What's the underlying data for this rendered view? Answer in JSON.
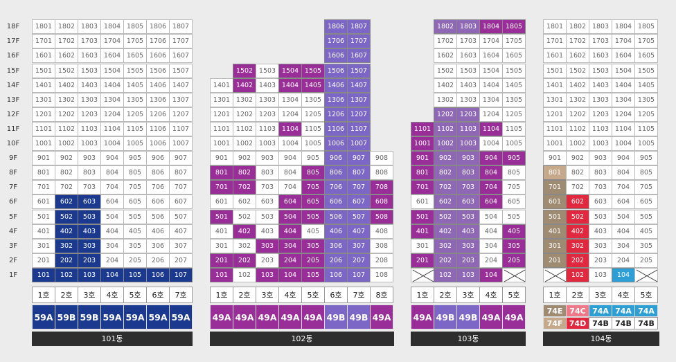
{
  "floor_labels": [
    "18F",
    "17F",
    "16F",
    "15F",
    "14F",
    "13F",
    "12F",
    "11F",
    "10F",
    "9F",
    "8F",
    "7F",
    "6F",
    "5F",
    "4F",
    "3F",
    "2F",
    "1F"
  ],
  "colors": {
    "navy": "#1b3a8f",
    "purple": "#9a2e98",
    "violet": "#7c66c6",
    "mauve": "#8e68b4",
    "brown": "#9f8b71",
    "tan": "#c6a98a",
    "red": "#e0293f",
    "pink": "#ee7a89",
    "blue": "#2e9fd4"
  },
  "buildings": [
    {
      "id": "101",
      "label": "101동",
      "floors": 18,
      "units": [
        {
          "label": "1호",
          "type": "59A",
          "color": "navy"
        },
        {
          "label": "2호",
          "type": "59B",
          "color": "navy"
        },
        {
          "label": "3호",
          "type": "59B",
          "color": "navy"
        },
        {
          "label": "4호",
          "type": "59A",
          "color": "navy"
        },
        {
          "label": "5호",
          "type": "59A",
          "color": "navy"
        },
        {
          "label": "6호",
          "type": "59A",
          "color": "navy"
        },
        {
          "label": "7호",
          "type": "59A",
          "color": "navy"
        }
      ],
      "cols": [
        {
          "top": 18,
          "hl": [
            [
              "navy",
              1,
              1
            ]
          ]
        },
        {
          "top": 18,
          "hl": [
            [
              "navy",
              1,
              6
            ]
          ]
        },
        {
          "top": 18,
          "hl": [
            [
              "navy",
              1,
              6
            ]
          ]
        },
        {
          "top": 18,
          "hl": [
            [
              "navy",
              1,
              1
            ]
          ]
        },
        {
          "top": 18,
          "hl": [
            [
              "navy",
              1,
              1
            ]
          ]
        },
        {
          "top": 18,
          "hl": [
            [
              "navy",
              1,
              1
            ]
          ]
        },
        {
          "top": 18,
          "hl": [
            [
              "navy",
              1,
              1
            ]
          ]
        }
      ]
    },
    {
      "id": "102",
      "label": "102동",
      "floors": 18,
      "units": [
        {
          "label": "1호",
          "type": "49A",
          "color": "purple"
        },
        {
          "label": "2호",
          "type": "49A",
          "color": "purple"
        },
        {
          "label": "3호",
          "type": "49A",
          "color": "purple"
        },
        {
          "label": "4호",
          "type": "49A",
          "color": "purple"
        },
        {
          "label": "5호",
          "type": "49A",
          "color": "purple"
        },
        {
          "label": "6호",
          "type": "49B",
          "color": "violet"
        },
        {
          "label": "7호",
          "type": "49B",
          "color": "violet"
        },
        {
          "label": "8호",
          "type": "49A",
          "color": "purple"
        }
      ],
      "cols": [
        {
          "top": 14,
          "hl": [
            [
              "purple",
              1,
              2
            ],
            [
              "purple",
              5,
              5
            ],
            [
              "purple",
              7,
              8
            ]
          ]
        },
        {
          "top": 15,
          "hl": [
            [
              "purple",
              2,
              2
            ],
            [
              "purple",
              4,
              4
            ],
            [
              "purple",
              7,
              8
            ],
            [
              "purple",
              14,
              15
            ]
          ]
        },
        {
          "top": 15,
          "hl": [
            [
              "purple",
              1,
              1
            ],
            [
              "purple",
              3,
              3
            ]
          ]
        },
        {
          "top": 15,
          "hl": [
            [
              "purple",
              1,
              6
            ],
            [
              "purple",
              11,
              11
            ],
            [
              "purple",
              14,
              15
            ]
          ]
        },
        {
          "top": 15,
          "hl": [
            [
              "purple",
              1,
              3
            ],
            [
              "purple",
              5,
              8
            ],
            [
              "purple",
              14,
              15
            ]
          ]
        },
        {
          "top": 18,
          "hl": [
            [
              "violet",
              1,
              18
            ]
          ]
        },
        {
          "top": 18,
          "hl": [
            [
              "violet",
              1,
              18
            ]
          ]
        },
        {
          "top": 9,
          "hl": [
            [
              "purple",
              5,
              7
            ]
          ]
        }
      ]
    },
    {
      "id": "103",
      "label": "103동",
      "floors": 18,
      "units": [
        {
          "label": "1호",
          "type": "49A",
          "color": "purple"
        },
        {
          "label": "2호",
          "type": "49B",
          "color": "violet"
        },
        {
          "label": "3호",
          "type": "49B",
          "color": "violet"
        },
        {
          "label": "4호",
          "type": "49A",
          "color": "purple"
        },
        {
          "label": "5호",
          "type": "49A",
          "color": "purple"
        }
      ],
      "cols": [
        {
          "top": 11,
          "xfirst": true,
          "hl": [
            [
              "purple",
              2,
              2
            ],
            [
              "purple",
              4,
              5
            ],
            [
              "purple",
              7,
              11
            ]
          ]
        },
        {
          "top": 18,
          "hl": [
            [
              "mauve",
              1,
              12
            ],
            [
              "mauve",
              18,
              18
            ]
          ]
        },
        {
          "top": 18,
          "hl": [
            [
              "mauve",
              1,
              12
            ],
            [
              "mauve",
              18,
              18
            ]
          ]
        },
        {
          "top": 18,
          "hl": [
            [
              "purple",
              1,
              1
            ],
            [
              "purple",
              6,
              9
            ],
            [
              "purple",
              11,
              11
            ],
            [
              "purple",
              18,
              18
            ]
          ]
        },
        {
          "top": 18,
          "xfirst": true,
          "hl": [
            [
              "purple",
              2,
              4
            ],
            [
              "purple",
              9,
              9
            ],
            [
              "purple",
              18,
              18
            ]
          ]
        }
      ]
    },
    {
      "id": "104",
      "label": "104동",
      "floors": 18,
      "units": [
        {
          "label": "1호",
          "type": "74E",
          "type2": "74F",
          "color": "brown",
          "color2": "tan"
        },
        {
          "label": "2호",
          "type": "74C",
          "type2": "74D",
          "color": "pink",
          "color2": "red"
        },
        {
          "label": "3호",
          "type": "74A",
          "type2": "74B",
          "color": "blue",
          "color2": "white"
        },
        {
          "label": "4호",
          "type": "74A",
          "type2": "74B",
          "color": "blue",
          "color2": "white"
        },
        {
          "label": "5호",
          "type": "74A",
          "type2": "74B",
          "color": "blue",
          "color2": "white"
        }
      ],
      "cols": [
        {
          "top": 18,
          "xfirst": true,
          "hl": [
            [
              "brown",
              2,
              7
            ],
            [
              "tan",
              8,
              8
            ]
          ]
        },
        {
          "top": 18,
          "hl": [
            [
              "red",
              1,
              6
            ]
          ]
        },
        {
          "top": 18,
          "hl": []
        },
        {
          "top": 18,
          "hl": [
            [
              "blue",
              1,
              1
            ]
          ]
        },
        {
          "top": 18,
          "xfirst": true,
          "hl": []
        }
      ]
    }
  ]
}
